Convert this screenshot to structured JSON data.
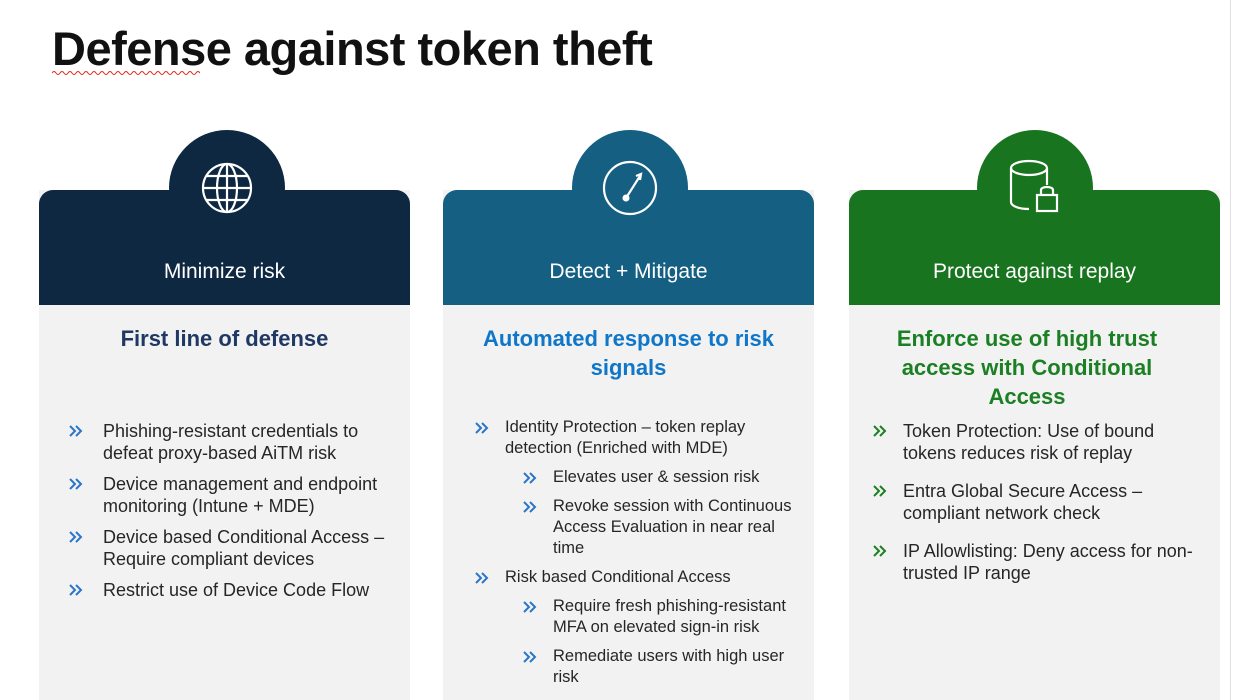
{
  "page": {
    "title": "Defense against token theft"
  },
  "colors": {
    "navy": "#0e2841",
    "teal": "#155f82",
    "green": "#19741f",
    "heading_navy": "#1f3864",
    "heading_blue": "#0f76c8",
    "heading_green": "#1b7f23",
    "bullet_chevron": "#2a75c7"
  },
  "cards": [
    {
      "icon": "globe-icon",
      "header": "Minimize risk",
      "heading": "First line of defense",
      "bullets": [
        "Phishing-resistant credentials to defeat proxy-based AiTM risk",
        "Device management and endpoint monitoring (Intune + MDE)",
        "Device based Conditional Access – Require compliant devices",
        "Restrict use of Device Code Flow"
      ]
    },
    {
      "icon": "gauge-icon",
      "header": "Detect + Mitigate",
      "heading": "Automated response to risk signals",
      "bullets": [
        {
          "text": "Identity Protection – token replay detection (Enriched with MDE)",
          "sub": [
            "Elevates user & session risk",
            "Revoke session with Continuous Access Evaluation in near real time"
          ]
        },
        {
          "text": "Risk based Conditional Access",
          "sub": [
            "Require fresh phishing-resistant MFA on elevated sign-in risk",
            "Remediate users with high user risk"
          ]
        }
      ]
    },
    {
      "icon": "database-lock-icon",
      "header": "Protect against replay",
      "heading": "Enforce use of high trust access with Conditional Access",
      "bullets": [
        "Token Protection:  Use of bound tokens reduces risk of replay",
        "Entra Global Secure Access – compliant network check",
        "IP Allowlisting: Deny access for non-trusted IP range"
      ]
    }
  ]
}
